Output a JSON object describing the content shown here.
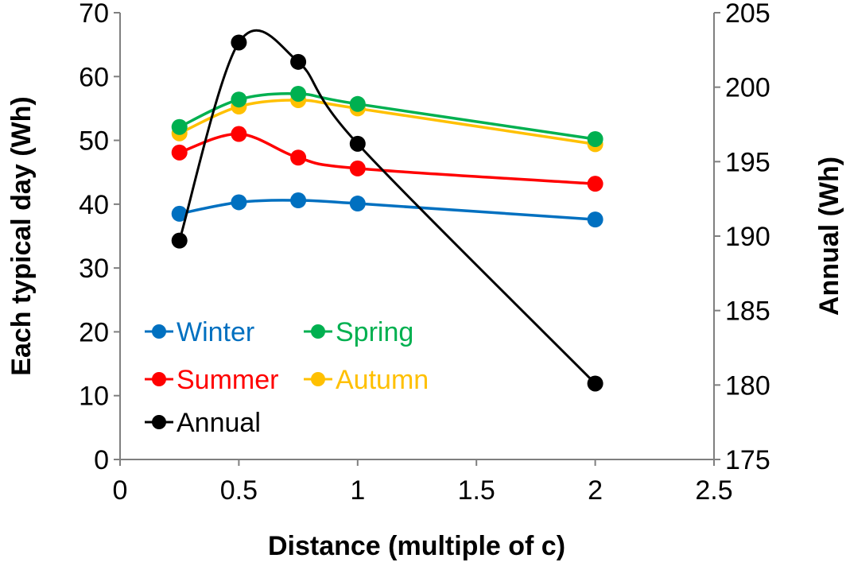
{
  "chart_data": {
    "type": "line",
    "smoothed": true,
    "xlabel": "Distance (multiple of c)",
    "ylabel": "Each typical day (Wh)",
    "y2label": "Annual (Wh)",
    "xlim": [
      0,
      2.5
    ],
    "ylim": [
      0,
      70
    ],
    "y2lim": [
      175,
      205
    ],
    "xticks": [
      "0",
      "0.5",
      "1",
      "1.5",
      "2",
      "2.5"
    ],
    "yticks": [
      "0",
      "10",
      "20",
      "30",
      "40",
      "50",
      "60",
      "70"
    ],
    "y2ticks": [
      "175",
      "180",
      "185",
      "190",
      "195",
      "200",
      "205"
    ],
    "grid": false,
    "legend_placement": "bottom-left",
    "x": [
      0.25,
      0.5,
      0.75,
      1,
      2
    ],
    "series": [
      {
        "name": "Winter",
        "axis": "left",
        "color": "#0070C0",
        "values": [
          38.5,
          40.3,
          40.6,
          40.1,
          37.6
        ]
      },
      {
        "name": "Spring",
        "axis": "left",
        "color": "#00B050",
        "values": [
          52.1,
          56.4,
          57.3,
          55.7,
          50.2
        ]
      },
      {
        "name": "Summer",
        "axis": "left",
        "color": "#FF0000",
        "values": [
          48.1,
          51.0,
          47.3,
          45.6,
          43.2
        ]
      },
      {
        "name": "Autumn",
        "axis": "left",
        "color": "#FFC000",
        "values": [
          51.1,
          55.3,
          56.3,
          55.0,
          49.4
        ]
      },
      {
        "name": "Annual",
        "axis": "right",
        "color": "#000000",
        "values": [
          189.7,
          203.0,
          201.7,
          196.2,
          180.1
        ]
      }
    ]
  }
}
